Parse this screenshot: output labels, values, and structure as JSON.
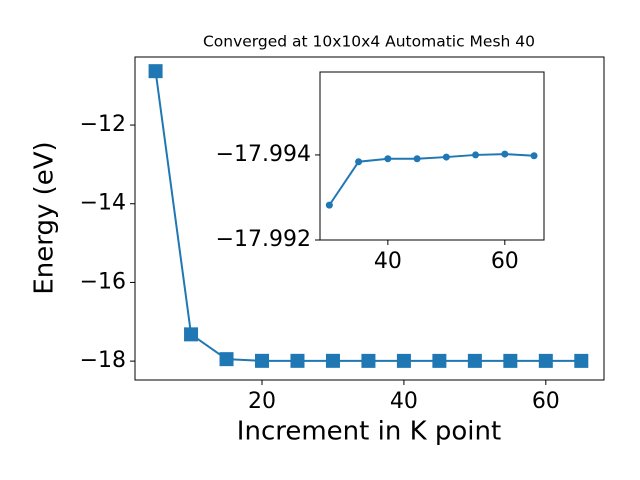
{
  "chart_data": [
    {
      "type": "line",
      "title": "Converged at 10x10x4 Automatic Mesh 40",
      "x_label": "Increment in K point",
      "y_label": "Energy (eV)",
      "x": [
        5,
        10,
        15,
        20,
        25,
        30,
        35,
        40,
        45,
        50,
        55,
        60,
        65
      ],
      "series": [
        {
          "color": "#1f77b4",
          "marker": "square",
          "values": [
            -10.63,
            -17.32,
            -17.95,
            -17.993,
            -17.993,
            -17.99282,
            -17.99384,
            -17.99391,
            -17.99391,
            -17.99395,
            -17.994,
            -17.99402,
            -17.99398
          ]
        }
      ],
      "xlim": [
        2.1,
        68.2
      ],
      "ylim": [
        -18.48,
        -10.27
      ],
      "xticks": [
        20,
        40,
        60
      ],
      "yticks": [
        {
          "value": -18,
          "label": "−18"
        },
        {
          "value": -16,
          "label": "−16"
        },
        {
          "value": -14,
          "label": "−14"
        },
        {
          "value": -12,
          "label": "−12"
        }
      ]
    },
    {
      "type": "line",
      "x": [
        30,
        35,
        40,
        45,
        50,
        55,
        60,
        65
      ],
      "series": [
        {
          "color": "#1f77b4",
          "marker": "circle",
          "values": [
            -17.99282,
            -17.99384,
            -17.99391,
            -17.99391,
            -17.99395,
            -17.994,
            -17.99402,
            -17.99398
          ]
        }
      ],
      "xlim": [
        28.4,
        66.7
      ],
      "ylim": [
        -17.992,
        -17.99595
      ],
      "xticks": [
        40,
        60
      ],
      "yticks": [
        {
          "value": -17.994,
          "label": "−17.994"
        },
        {
          "value": -17.992,
          "label": "−17.992"
        }
      ]
    }
  ]
}
